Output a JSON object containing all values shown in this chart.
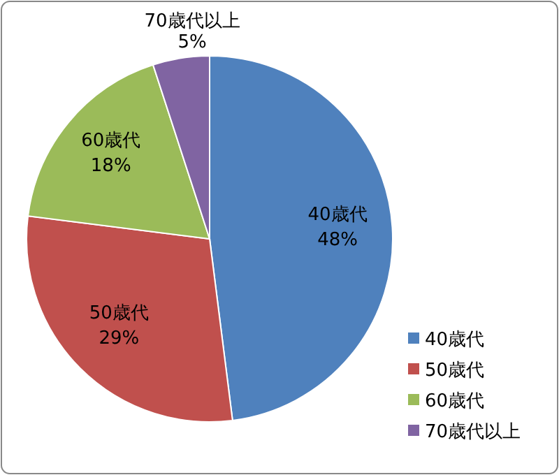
{
  "chart_data": {
    "type": "pie",
    "categories": [
      "40歳代",
      "50歳代",
      "60歳代",
      "70歳代以上"
    ],
    "values": [
      48,
      29,
      18,
      5
    ],
    "colors": [
      "#4f81bd",
      "#c0504d",
      "#9bbb59",
      "#8064a2"
    ],
    "value_labels": [
      "48%",
      "29%",
      "18%",
      "5%"
    ],
    "legend": "bottom right"
  }
}
